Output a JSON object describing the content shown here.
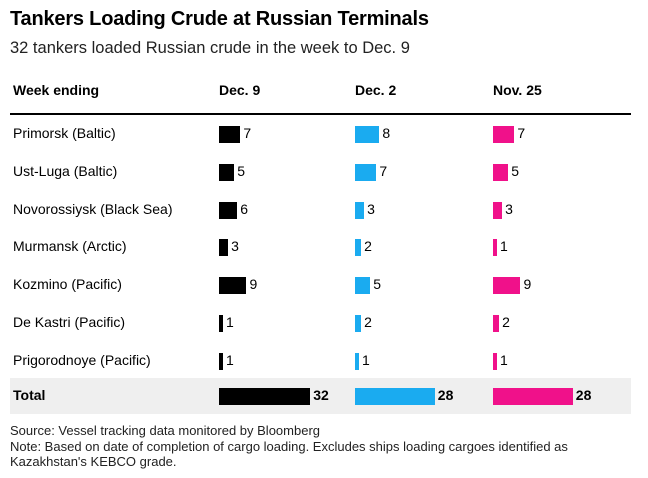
{
  "title": "Tankers Loading Crude at Russian Terminals",
  "subtitle": "32 tankers loaded Russian crude in the week to Dec. 9",
  "chart_data": {
    "type": "table",
    "row_header": "Week ending",
    "columns": [
      {
        "label": "Dec. 9",
        "color": "#000000"
      },
      {
        "label": "Dec. 2",
        "color": "#1aabf0"
      },
      {
        "label": "Nov. 25",
        "color": "#f0118a"
      }
    ],
    "rows": [
      {
        "label": "Primorsk (Baltic)",
        "values": [
          7,
          8,
          7
        ]
      },
      {
        "label": "Ust-Luga (Baltic)",
        "values": [
          5,
          7,
          5
        ]
      },
      {
        "label": "Novorossiysk (Black Sea)",
        "values": [
          6,
          3,
          3
        ]
      },
      {
        "label": "Murmansk (Arctic)",
        "values": [
          3,
          2,
          1
        ]
      },
      {
        "label": "Kozmino (Pacific)",
        "values": [
          9,
          5,
          9
        ]
      },
      {
        "label": "De Kastri (Pacific)",
        "values": [
          1,
          2,
          2
        ]
      },
      {
        "label": "Prigorodnoye (Pacific)",
        "values": [
          1,
          1,
          1
        ]
      }
    ],
    "total": {
      "label": "Total",
      "values": [
        32,
        28,
        28
      ]
    }
  },
  "footer": {
    "source": "Source: Vessel tracking data monitored by Bloomberg",
    "note": "Note: Based on date of completion of cargo loading. Excludes ships loading cargoes identified as Kazakhstan's KEBCO grade."
  }
}
